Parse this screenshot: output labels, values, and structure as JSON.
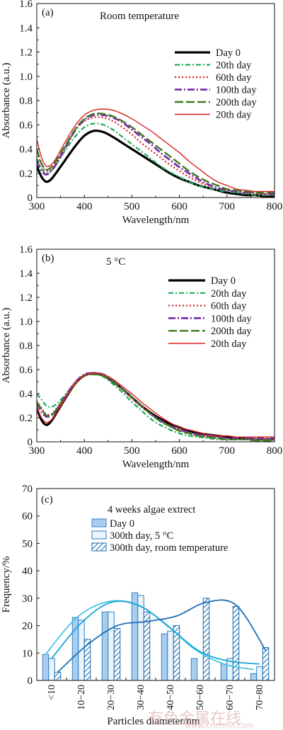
{
  "watermark": {
    "line1": "有色金属在线",
    "line2": "www.cnnmol.com"
  },
  "chart_data": [
    {
      "type": "line",
      "panel": "(a)",
      "title": "Room temperature",
      "xlabel": "Wavelength/nm",
      "ylabel": "Absorbance (a.u.)",
      "xlim": [
        300,
        800
      ],
      "ylim": [
        0,
        1.6
      ],
      "xticks": [
        "300",
        "400",
        "500",
        "600",
        "700",
        "800"
      ],
      "yticks": [
        "0",
        "0.2",
        "0.4",
        "0.6",
        "0.8",
        "1.0",
        "1.2",
        "1.4",
        "1.6"
      ],
      "grid": false,
      "legend_position": "right",
      "x": [
        300,
        310,
        320,
        330,
        340,
        360,
        380,
        400,
        420,
        440,
        460,
        480,
        500,
        520,
        540,
        560,
        580,
        600,
        620,
        640,
        660,
        680,
        700,
        720,
        740,
        760,
        780,
        800
      ],
      "series": [
        {
          "name": "Day 0",
          "color": "#000000",
          "dash": "",
          "width": 3.2,
          "values": [
            0.26,
            0.17,
            0.13,
            0.15,
            0.2,
            0.31,
            0.42,
            0.51,
            0.55,
            0.54,
            0.5,
            0.45,
            0.4,
            0.35,
            0.3,
            0.25,
            0.2,
            0.16,
            0.13,
            0.1,
            0.08,
            0.06,
            0.04,
            0.03,
            0.02,
            0.02,
            0.01,
            0.01
          ]
        },
        {
          "name": "20th day",
          "color": "#1fae5a",
          "dash": "7 3 2 3",
          "width": 2.2,
          "values": [
            0.32,
            0.24,
            0.2,
            0.22,
            0.27,
            0.39,
            0.5,
            0.58,
            0.61,
            0.6,
            0.56,
            0.5,
            0.44,
            0.38,
            0.32,
            0.26,
            0.21,
            0.17,
            0.13,
            0.1,
            0.08,
            0.06,
            0.05,
            0.04,
            0.03,
            0.02,
            0.02,
            0.02
          ]
        },
        {
          "name": "60th day",
          "color": "#d42020",
          "dash": "2 3",
          "width": 2.2,
          "values": [
            0.37,
            0.27,
            0.22,
            0.24,
            0.29,
            0.42,
            0.55,
            0.63,
            0.66,
            0.66,
            0.63,
            0.58,
            0.52,
            0.45,
            0.39,
            0.33,
            0.27,
            0.22,
            0.17,
            0.13,
            0.1,
            0.08,
            0.06,
            0.05,
            0.04,
            0.03,
            0.03,
            0.03
          ]
        },
        {
          "name": "100th day",
          "color": "#7a2ea8",
          "dash": "10 3 2 3",
          "width": 2.8,
          "values": [
            0.3,
            0.22,
            0.19,
            0.22,
            0.27,
            0.41,
            0.55,
            0.64,
            0.68,
            0.68,
            0.66,
            0.62,
            0.56,
            0.5,
            0.44,
            0.37,
            0.31,
            0.25,
            0.2,
            0.15,
            0.11,
            0.08,
            0.06,
            0.05,
            0.04,
            0.04,
            0.03,
            0.03
          ]
        },
        {
          "name": "200th day",
          "color": "#3d7a1f",
          "dash": "12 4",
          "width": 2.4,
          "values": [
            0.4,
            0.28,
            0.23,
            0.25,
            0.3,
            0.43,
            0.56,
            0.65,
            0.69,
            0.69,
            0.67,
            0.63,
            0.58,
            0.52,
            0.46,
            0.4,
            0.34,
            0.28,
            0.22,
            0.17,
            0.13,
            0.1,
            0.07,
            0.06,
            0.05,
            0.04,
            0.04,
            0.04
          ]
        },
        {
          "name": "20th day",
          "color": "#e02020",
          "dash": "",
          "width": 1.4,
          "values": [
            0.48,
            0.33,
            0.26,
            0.27,
            0.32,
            0.46,
            0.59,
            0.68,
            0.72,
            0.73,
            0.72,
            0.69,
            0.65,
            0.6,
            0.55,
            0.49,
            0.43,
            0.37,
            0.3,
            0.24,
            0.18,
            0.13,
            0.1,
            0.07,
            0.06,
            0.05,
            0.05,
            0.05
          ]
        }
      ]
    },
    {
      "type": "line",
      "panel": "(b)",
      "title": "5 °C",
      "xlabel": "Wavelength/nm",
      "ylabel": "Absorbance (a.u.)",
      "xlim": [
        300,
        800
      ],
      "ylim": [
        0,
        1.6
      ],
      "xticks": [
        "300",
        "400",
        "500",
        "600",
        "700",
        "800"
      ],
      "yticks": [
        "0",
        "0.2",
        "0.4",
        "0.6",
        "0.8",
        "1.0",
        "1.2",
        "1.4",
        "1.6"
      ],
      "grid": false,
      "legend_position": "right",
      "x": [
        300,
        310,
        320,
        330,
        340,
        360,
        380,
        400,
        420,
        440,
        460,
        480,
        500,
        520,
        540,
        560,
        580,
        600,
        620,
        640,
        660,
        680,
        700,
        720,
        740,
        760,
        780,
        800
      ],
      "series": [
        {
          "name": "Day 0",
          "color": "#000000",
          "dash": "",
          "width": 3.2,
          "values": [
            0.28,
            0.18,
            0.14,
            0.17,
            0.23,
            0.36,
            0.48,
            0.55,
            0.57,
            0.55,
            0.5,
            0.44,
            0.37,
            0.3,
            0.24,
            0.19,
            0.15,
            0.12,
            0.09,
            0.07,
            0.06,
            0.05,
            0.04,
            0.03,
            0.03,
            0.02,
            0.02,
            0.02
          ]
        },
        {
          "name": "20th day",
          "color": "#1fae5a",
          "dash": "7 3 2 3",
          "width": 2.2,
          "values": [
            0.4,
            0.35,
            0.3,
            0.29,
            0.31,
            0.39,
            0.49,
            0.55,
            0.56,
            0.54,
            0.48,
            0.41,
            0.33,
            0.26,
            0.19,
            0.14,
            0.1,
            0.07,
            0.05,
            0.04,
            0.03,
            0.02,
            0.02,
            0.02,
            0.02,
            0.02,
            0.02,
            0.02
          ]
        },
        {
          "name": "60th day",
          "color": "#d42020",
          "dash": "2 3",
          "width": 2.2,
          "values": [
            0.34,
            0.28,
            0.23,
            0.23,
            0.27,
            0.38,
            0.49,
            0.55,
            0.57,
            0.55,
            0.5,
            0.43,
            0.36,
            0.29,
            0.23,
            0.17,
            0.13,
            0.1,
            0.07,
            0.05,
            0.04,
            0.03,
            0.03,
            0.02,
            0.02,
            0.02,
            0.02,
            0.02
          ]
        },
        {
          "name": "100th day",
          "color": "#7a2ea8",
          "dash": "10 3 2 3",
          "width": 2.8,
          "values": [
            0.32,
            0.25,
            0.21,
            0.22,
            0.26,
            0.38,
            0.49,
            0.56,
            0.57,
            0.56,
            0.51,
            0.44,
            0.37,
            0.3,
            0.23,
            0.18,
            0.13,
            0.1,
            0.08,
            0.06,
            0.05,
            0.04,
            0.03,
            0.03,
            0.03,
            0.03,
            0.03,
            0.03
          ]
        },
        {
          "name": "200th day",
          "color": "#3d7a1f",
          "dash": "12 4",
          "width": 2.4,
          "values": [
            0.33,
            0.27,
            0.22,
            0.22,
            0.26,
            0.37,
            0.48,
            0.55,
            0.56,
            0.55,
            0.5,
            0.44,
            0.37,
            0.3,
            0.23,
            0.17,
            0.13,
            0.09,
            0.07,
            0.05,
            0.04,
            0.03,
            0.02,
            0.02,
            0.02,
            0.01,
            0.01,
            0.01
          ]
        },
        {
          "name": "20th day",
          "color": "#e02020",
          "dash": "",
          "width": 1.4,
          "values": [
            0.29,
            0.2,
            0.16,
            0.18,
            0.23,
            0.36,
            0.48,
            0.55,
            0.57,
            0.56,
            0.52,
            0.46,
            0.4,
            0.33,
            0.27,
            0.21,
            0.16,
            0.12,
            0.1,
            0.08,
            0.06,
            0.05,
            0.05,
            0.04,
            0.04,
            0.04,
            0.04,
            0.04
          ]
        }
      ]
    },
    {
      "type": "bar",
      "panel": "(c)",
      "legend_title": "4 weeks algae extrect",
      "xlabel": "Particles diameter/nm",
      "ylabel": "Frequency/%",
      "ylim": [
        0,
        70
      ],
      "yticks": [
        "0",
        "10",
        "20",
        "30",
        "40",
        "50",
        "60",
        "70"
      ],
      "categories": [
        "<10",
        "10−20",
        "20−30",
        "30−40",
        "40−50",
        "50−60",
        "60−70",
        "70−80"
      ],
      "grid": false,
      "legend_position": "top-center",
      "series": [
        {
          "name": "Day 0",
          "style": "solid",
          "fill": "#a9cdef",
          "stroke": "#3d7fc4",
          "values": [
            9.5,
            23,
            25,
            32,
            17,
            8,
            6,
            2.5
          ],
          "curve_color": "#47c6e6"
        },
        {
          "name": "300th day, 5 °C",
          "style": "open",
          "fill": "#eaf4fc",
          "stroke": "#2f7fc1",
          "values": [
            8,
            22,
            25,
            31,
            18,
            0,
            8,
            5
          ],
          "curve_color": "#19a6d8"
        },
        {
          "name": "300th day, room temperature",
          "style": "hatched",
          "fill": "#ffffff",
          "stroke": "#1f6fae",
          "values": [
            3,
            15,
            19,
            25,
            20,
            30,
            27,
            12
          ],
          "curve_color": "#1f6fb8"
        }
      ],
      "fit_curves": {
        "x_centers": [
          0,
          1,
          2,
          3,
          4,
          5,
          6,
          7
        ],
        "day0": [
          9.5,
          22.5,
          28.5,
          28.0,
          21.0,
          11.5,
          6.0,
          4.0
        ],
        "cold": [
          8.0,
          21.0,
          28.5,
          27.0,
          19.0,
          10.5,
          7.0,
          6.0
        ],
        "room": [
          3.0,
          13.0,
          20.0,
          21.5,
          23.5,
          28.5,
          27.5,
          11.0
        ]
      }
    }
  ]
}
